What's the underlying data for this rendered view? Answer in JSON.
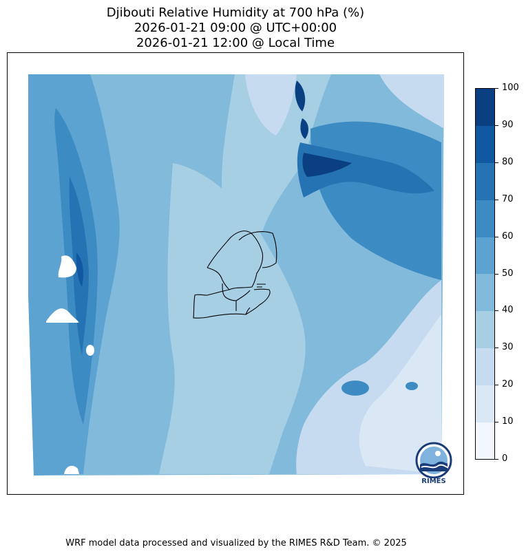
{
  "title": {
    "line1": "Djibouti Relative Humidity at 700 hPa (%)",
    "line2": "2026-01-21 09:00 @ UTC+00:00",
    "line3": "2026-01-21 12:00 @ Local Time"
  },
  "colorbar": {
    "ticks": [
      "0",
      "10",
      "20",
      "30",
      "40",
      "50",
      "60",
      "70",
      "80",
      "90",
      "100"
    ],
    "colors": [
      "#f1f7fd",
      "#dae8f6",
      "#c6dbef",
      "#a6cfe4",
      "#82badb",
      "#5ca3d1",
      "#3d8bc3",
      "#2673b4",
      "#1058a1",
      "#0a3f82"
    ]
  },
  "logo": {
    "text": "RIMES"
  },
  "footer": "WRF model data processed and visualized by the RIMES R&D Team. © 2025"
}
